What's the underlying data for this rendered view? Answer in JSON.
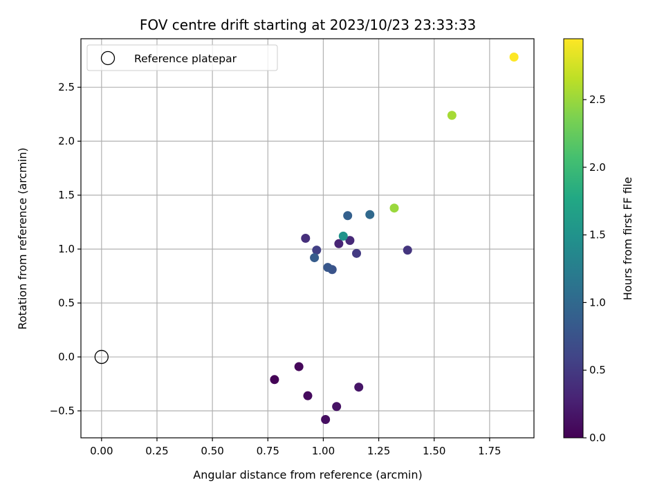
{
  "chart_data": {
    "type": "scatter",
    "title": "FOV centre drift starting at 2023/10/23 23:33:33",
    "xlabel": "Angular distance from reference (arcmin)",
    "ylabel": "Rotation from reference (arcmin)",
    "xlim": [
      -0.093,
      1.95
    ],
    "ylim": [
      -0.75,
      2.95
    ],
    "xticks": [
      0.0,
      0.25,
      0.5,
      0.75,
      1.0,
      1.25,
      1.5,
      1.75
    ],
    "xtick_labels": [
      "0.00",
      "0.25",
      "0.50",
      "0.75",
      "1.00",
      "1.25",
      "1.50",
      "1.75"
    ],
    "yticks": [
      -0.5,
      0.0,
      0.5,
      1.0,
      1.5,
      2.0,
      2.5
    ],
    "ytick_labels": [
      "−0.5",
      "0.0",
      "0.5",
      "1.0",
      "1.5",
      "2.0",
      "2.5"
    ],
    "grid": true,
    "legend": {
      "position": "top-left",
      "entries": [
        "Reference platepar"
      ]
    },
    "reference_point": {
      "x": 0.0,
      "y": 0.0,
      "marker": "open-circle",
      "color": "#000000"
    },
    "colorbar": {
      "label": "Hours from first FF file",
      "min": 0.0,
      "max": 2.95,
      "ticks": [
        0.0,
        0.5,
        1.0,
        1.5,
        2.0,
        2.5
      ],
      "tick_labels": [
        "0.0",
        "0.5",
        "1.0",
        "1.5",
        "2.0",
        "2.5"
      ],
      "colormap": "viridis"
    },
    "points": [
      {
        "x": 0.78,
        "y": -0.21,
        "hours": 0.02
      },
      {
        "x": 0.89,
        "y": -0.09,
        "hours": 0.05
      },
      {
        "x": 0.93,
        "y": -0.36,
        "hours": 0.08
      },
      {
        "x": 1.01,
        "y": -0.58,
        "hours": 0.11
      },
      {
        "x": 1.06,
        "y": -0.46,
        "hours": 0.14
      },
      {
        "x": 1.16,
        "y": -0.28,
        "hours": 0.17
      },
      {
        "x": 1.07,
        "y": 1.05,
        "hours": 0.3
      },
      {
        "x": 1.12,
        "y": 1.08,
        "hours": 0.35
      },
      {
        "x": 0.92,
        "y": 1.1,
        "hours": 0.4
      },
      {
        "x": 1.38,
        "y": 0.99,
        "hours": 0.45
      },
      {
        "x": 1.15,
        "y": 0.96,
        "hours": 0.5
      },
      {
        "x": 0.97,
        "y": 0.99,
        "hours": 0.55
      },
      {
        "x": 1.04,
        "y": 0.81,
        "hours": 0.75
      },
      {
        "x": 1.02,
        "y": 0.83,
        "hours": 0.8
      },
      {
        "x": 0.96,
        "y": 0.92,
        "hours": 0.85
      },
      {
        "x": 1.11,
        "y": 1.31,
        "hours": 0.9
      },
      {
        "x": 1.21,
        "y": 1.32,
        "hours": 1.0
      },
      {
        "x": 1.09,
        "y": 1.12,
        "hours": 1.5
      },
      {
        "x": 1.32,
        "y": 1.38,
        "hours": 2.5
      },
      {
        "x": 1.58,
        "y": 2.24,
        "hours": 2.55
      },
      {
        "x": 1.86,
        "y": 2.78,
        "hours": 2.95
      }
    ]
  }
}
